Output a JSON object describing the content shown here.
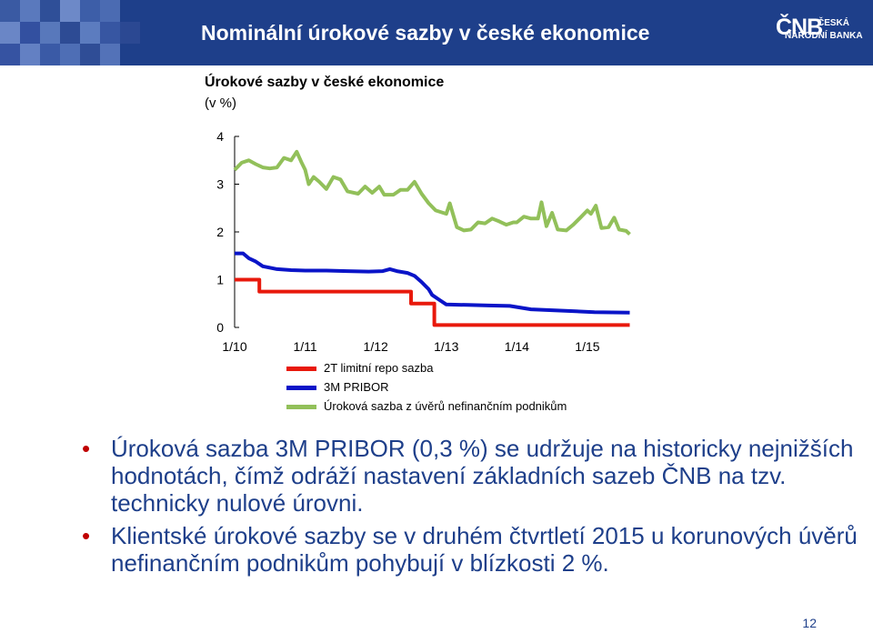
{
  "header": {
    "title": "Nominální úrokové sazby v české ekonomice",
    "logo_mark": "ČNB",
    "logo_line1": "ČESKÁ",
    "logo_line2": "NÁRODNÍ BANKA"
  },
  "chart_data": {
    "type": "line",
    "title": "Úrokové sazby v české ekonomice",
    "ylabel": "(v %)",
    "ylim": [
      0,
      4
    ],
    "yticks": [
      "0",
      "1",
      "2",
      "3",
      "4"
    ],
    "xlim": [
      2010.0,
      2015.8
    ],
    "xticks": [
      {
        "label": "1/10",
        "value": 2010.0
      },
      {
        "label": "1/11",
        "value": 2011.0
      },
      {
        "label": "1/12",
        "value": 2012.0
      },
      {
        "label": "1/13",
        "value": 2013.0
      },
      {
        "label": "1/14",
        "value": 2014.0
      },
      {
        "label": "1/15",
        "value": 2015.0
      }
    ],
    "legend_position": "bottom",
    "series": [
      {
        "name": "2T limitní repo sazba",
        "color": "#e8190c",
        "step": true,
        "points": [
          [
            2010.0,
            1.0
          ],
          [
            2010.35,
            1.0
          ],
          [
            2010.35,
            0.75
          ],
          [
            2012.5,
            0.75
          ],
          [
            2012.5,
            0.5
          ],
          [
            2012.83,
            0.5
          ],
          [
            2012.83,
            0.05
          ],
          [
            2015.6,
            0.05
          ]
        ]
      },
      {
        "name": "3M PRIBOR",
        "color": "#0a14c8",
        "step": false,
        "points": [
          [
            2010.0,
            1.55
          ],
          [
            2010.12,
            1.55
          ],
          [
            2010.2,
            1.45
          ],
          [
            2010.3,
            1.38
          ],
          [
            2010.4,
            1.28
          ],
          [
            2010.6,
            1.22
          ],
          [
            2010.8,
            1.2
          ],
          [
            2011.0,
            1.19
          ],
          [
            2011.3,
            1.19
          ],
          [
            2011.6,
            1.18
          ],
          [
            2011.9,
            1.17
          ],
          [
            2012.1,
            1.18
          ],
          [
            2012.2,
            1.22
          ],
          [
            2012.3,
            1.18
          ],
          [
            2012.45,
            1.14
          ],
          [
            2012.55,
            1.08
          ],
          [
            2012.65,
            0.95
          ],
          [
            2012.75,
            0.8
          ],
          [
            2012.8,
            0.68
          ],
          [
            2012.9,
            0.58
          ],
          [
            2013.0,
            0.48
          ],
          [
            2013.3,
            0.47
          ],
          [
            2013.6,
            0.46
          ],
          [
            2013.9,
            0.45
          ],
          [
            2014.2,
            0.38
          ],
          [
            2014.5,
            0.36
          ],
          [
            2014.8,
            0.34
          ],
          [
            2015.1,
            0.32
          ],
          [
            2015.6,
            0.31
          ]
        ]
      },
      {
        "name": "Úroková sazba z úvěrů nefinančním podnikům",
        "color": "#92c05a",
        "step": false,
        "points": [
          [
            2010.0,
            3.3
          ],
          [
            2010.1,
            3.45
          ],
          [
            2010.2,
            3.5
          ],
          [
            2010.3,
            3.42
          ],
          [
            2010.4,
            3.35
          ],
          [
            2010.5,
            3.33
          ],
          [
            2010.6,
            3.35
          ],
          [
            2010.7,
            3.55
          ],
          [
            2010.8,
            3.5
          ],
          [
            2010.88,
            3.68
          ],
          [
            2010.95,
            3.45
          ],
          [
            2011.0,
            3.3
          ],
          [
            2011.05,
            3.0
          ],
          [
            2011.12,
            3.15
          ],
          [
            2011.2,
            3.05
          ],
          [
            2011.3,
            2.9
          ],
          [
            2011.4,
            3.15
          ],
          [
            2011.5,
            3.1
          ],
          [
            2011.6,
            2.85
          ],
          [
            2011.75,
            2.8
          ],
          [
            2011.85,
            2.95
          ],
          [
            2011.95,
            2.82
          ],
          [
            2012.05,
            2.95
          ],
          [
            2012.12,
            2.78
          ],
          [
            2012.25,
            2.78
          ],
          [
            2012.35,
            2.88
          ],
          [
            2012.45,
            2.88
          ],
          [
            2012.55,
            3.05
          ],
          [
            2012.65,
            2.8
          ],
          [
            2012.75,
            2.6
          ],
          [
            2012.85,
            2.45
          ],
          [
            2013.0,
            2.38
          ],
          [
            2013.05,
            2.6
          ],
          [
            2013.15,
            2.1
          ],
          [
            2013.25,
            2.03
          ],
          [
            2013.35,
            2.05
          ],
          [
            2013.45,
            2.2
          ],
          [
            2013.55,
            2.18
          ],
          [
            2013.65,
            2.28
          ],
          [
            2013.75,
            2.22
          ],
          [
            2013.85,
            2.15
          ],
          [
            2013.95,
            2.2
          ],
          [
            2014.0,
            2.2
          ],
          [
            2014.1,
            2.32
          ],
          [
            2014.2,
            2.28
          ],
          [
            2014.3,
            2.28
          ],
          [
            2014.35,
            2.62
          ],
          [
            2014.42,
            2.12
          ],
          [
            2014.5,
            2.4
          ],
          [
            2014.58,
            2.05
          ],
          [
            2014.7,
            2.03
          ],
          [
            2014.8,
            2.15
          ],
          [
            2014.9,
            2.3
          ],
          [
            2015.0,
            2.45
          ],
          [
            2015.05,
            2.38
          ],
          [
            2015.12,
            2.55
          ],
          [
            2015.2,
            2.08
          ],
          [
            2015.3,
            2.1
          ],
          [
            2015.38,
            2.3
          ],
          [
            2015.45,
            2.05
          ],
          [
            2015.55,
            2.02
          ],
          [
            2015.6,
            1.95
          ]
        ]
      }
    ]
  },
  "bullets": [
    "Úroková sazba 3M PRIBOR (0,3 %) se udržuje na historicky nejnižších hodnotách, čímž odráží nastavení základních sazeb ČNB na tzv. technicky nulové úrovni.",
    "Klientské úrokové sazby se v druhém čtvrtletí 2015 u korunových úvěrů nefinančním podnikům pohybují v blízkosti 2 %."
  ],
  "bullet_symbol": "•",
  "page_number": "12"
}
